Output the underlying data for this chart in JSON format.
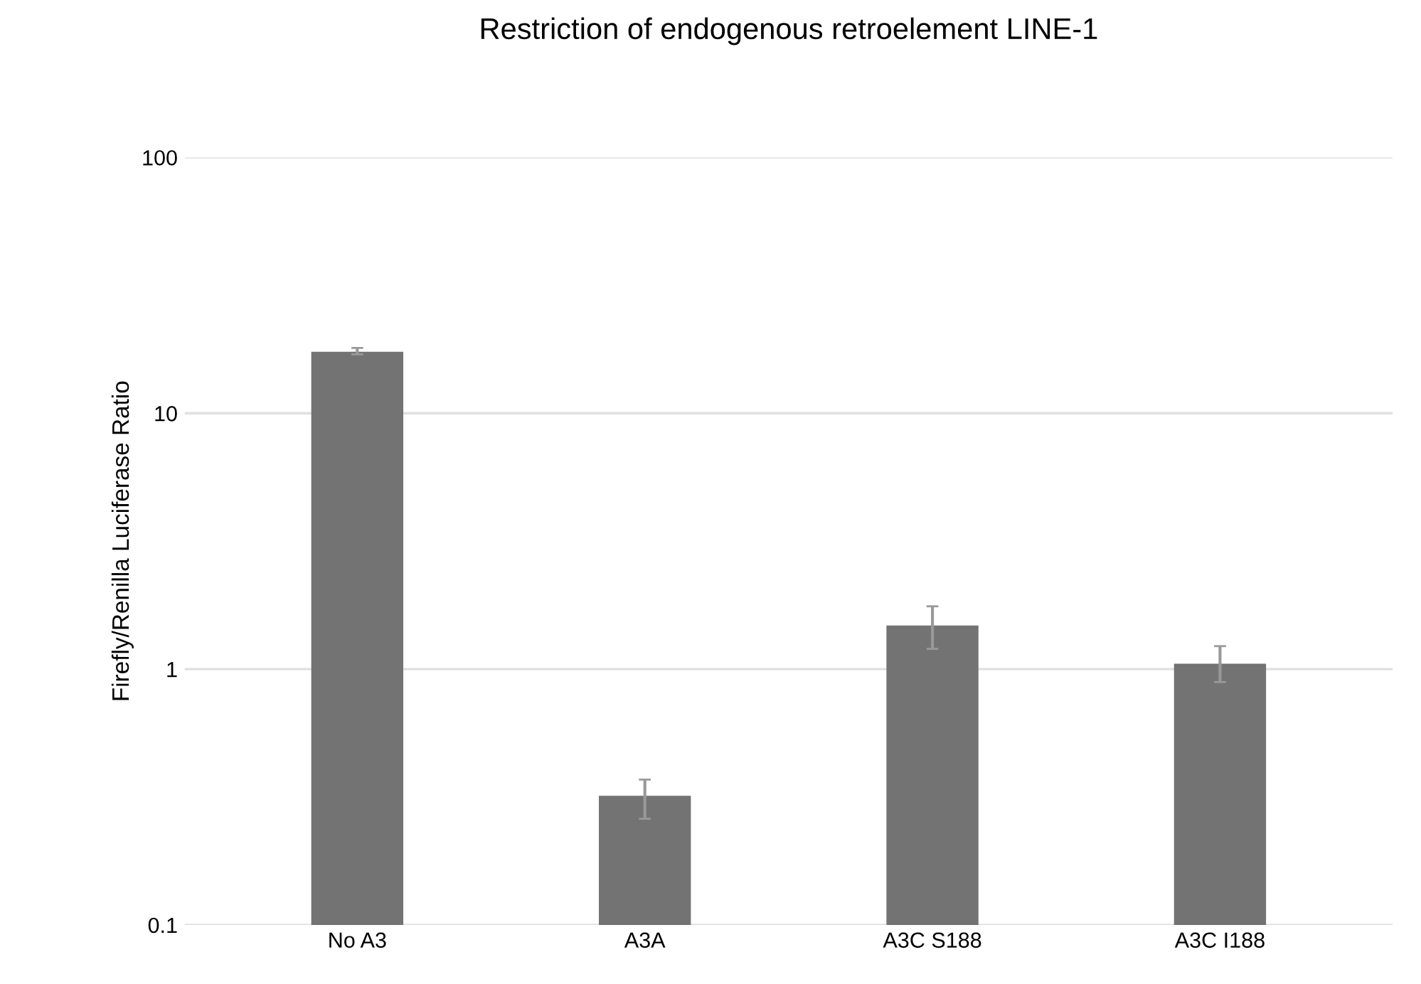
{
  "chart_data": {
    "type": "bar",
    "title": "Restriction of endogenous retroelement LINE-1",
    "ylabel": "Firefly/Renilla Luciferase Ratio",
    "categories": [
      "No A3",
      "A3A",
      "A3C S188",
      "A3C I188"
    ],
    "values": [
      17.4,
      0.32,
      1.48,
      1.05
    ],
    "errors": [
      [
        17,
        18
      ],
      [
        0.26,
        0.37
      ],
      [
        1.2,
        1.76
      ],
      [
        0.89,
        1.23
      ]
    ],
    "color": "#737373",
    "log": true,
    "ylim": [
      0.1,
      100
    ],
    "yticks": [
      0.1,
      1,
      10,
      100
    ],
    "grid": "y"
  }
}
